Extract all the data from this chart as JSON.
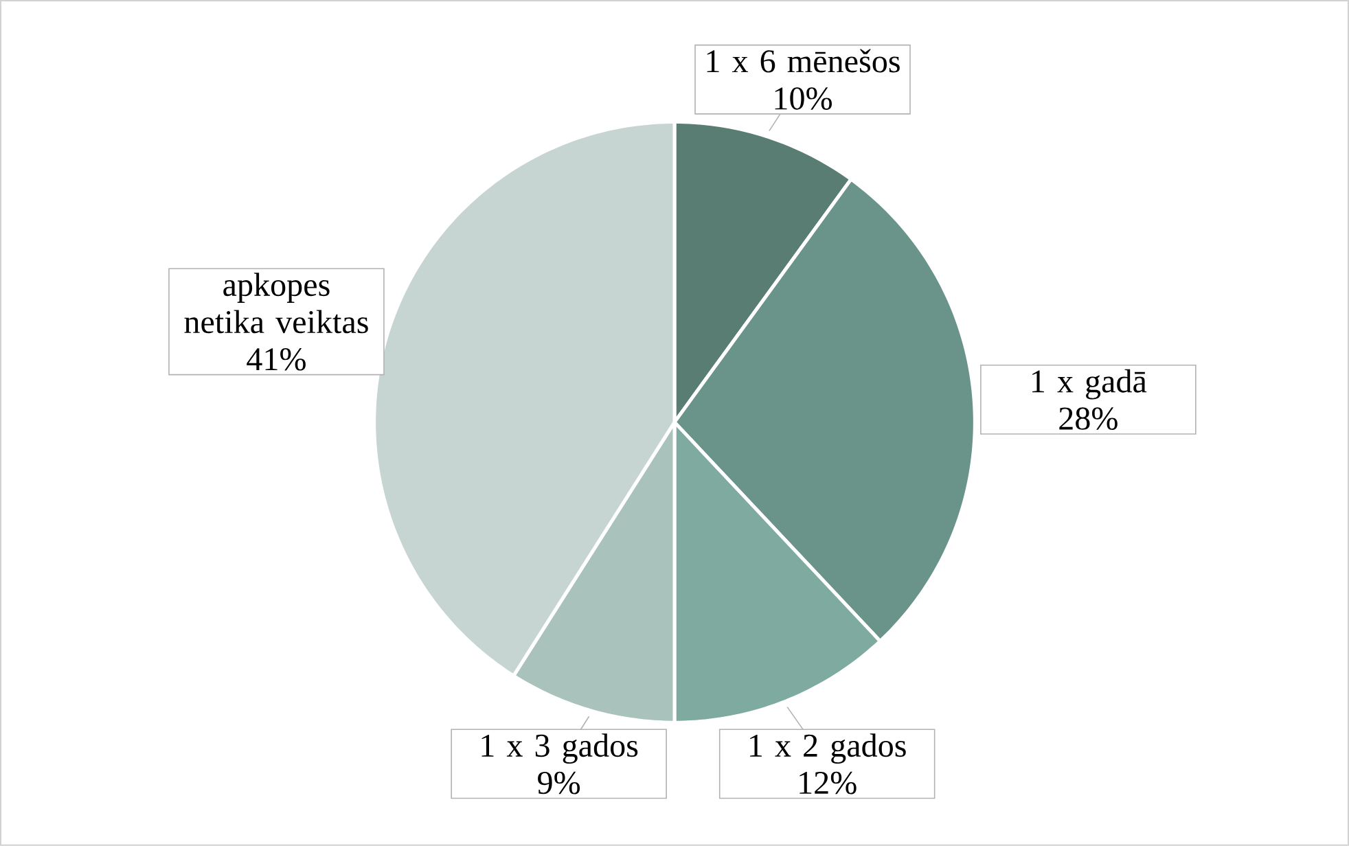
{
  "chart_data": {
    "type": "pie",
    "categories": [
      "1 x 6 mēnešos",
      "1 x gadā",
      "1 x 2 gados",
      "1 x 3 gados",
      "apkopes netika veiktas"
    ],
    "values": [
      10,
      28,
      12,
      9,
      41
    ],
    "colors": [
      "#5a7d73",
      "#6a948a",
      "#7eaaa0",
      "#a9c2bc",
      "#c6d5d2"
    ],
    "value_labels": [
      "10%",
      "28%",
      "12%",
      "9%",
      "41%"
    ]
  }
}
